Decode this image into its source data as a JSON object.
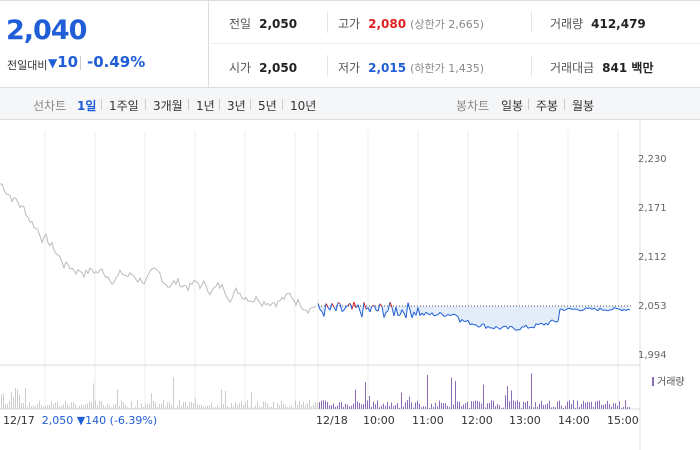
{
  "summary": {
    "price": "2,040",
    "change_label": "전일대비",
    "change_arrow": "▼",
    "change_value": "10",
    "change_pct": "-0.49%",
    "prev_close_label": "전일",
    "prev_close": "2,050",
    "high_label": "고가",
    "high": "2,080",
    "upper_limit_text": "(상한가 2,665)",
    "volume_label": "거래량",
    "volume": "412,479",
    "open_label": "시가",
    "open": "2,050",
    "low_label": "저가",
    "low": "2,015",
    "lower_limit_text": "(하한가 1,435)",
    "amount_label": "거래대금",
    "amount": "841 백만"
  },
  "tabs": {
    "line_label": "선차트",
    "line_periods": [
      "1일",
      "1주일",
      "3개월",
      "1년",
      "3년",
      "5년",
      "10년"
    ],
    "active_index": 0,
    "candle_label": "봉차트",
    "candle_periods": [
      "일봉",
      "주봉",
      "월봉"
    ]
  },
  "chart_data": {
    "type": "line",
    "y_ticks": [
      "2,230",
      "2,171",
      "2,112",
      "2,053",
      "1,994"
    ],
    "ylim": [
      1994,
      2230
    ],
    "reference_value": 2053,
    "time_labels": [
      "12/18",
      "10:00",
      "11:00",
      "12:00",
      "13:00",
      "14:00",
      "15:00"
    ],
    "volume_legend": "거래량",
    "prev_day": {
      "date": "12/17",
      "close": "2,050",
      "arrow": "▼",
      "change": "140",
      "pct": "(-6.39%)"
    }
  },
  "colors": {
    "up": "#e02020",
    "down": "#1f5ed6",
    "prev": "#bbbbbb",
    "volume": "#8a6bb5"
  }
}
